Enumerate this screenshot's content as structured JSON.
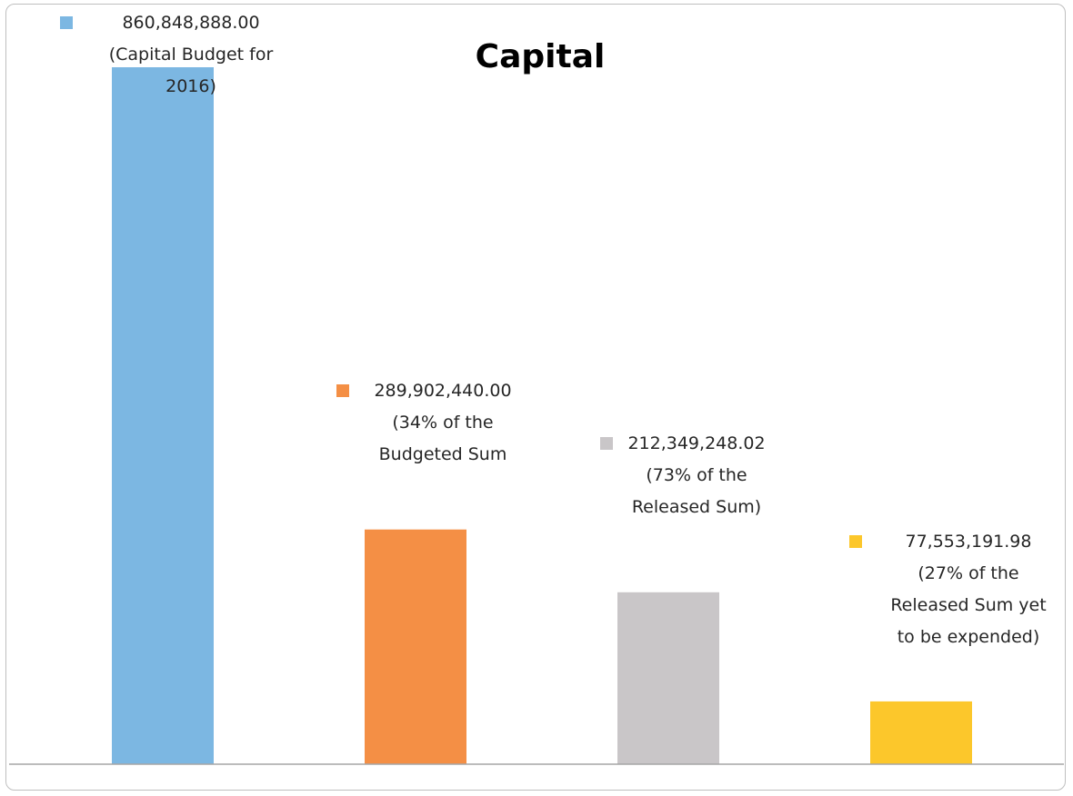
{
  "chart_data": {
    "type": "bar",
    "title": "Capital",
    "xlabel": "",
    "ylabel": "",
    "ylim": [
      0,
      860848888.0
    ],
    "grid": false,
    "legend": "none",
    "categories": [
      "",
      "",
      "",
      ""
    ],
    "values": [
      860848888.0,
      289902440.0,
      212349248.02,
      77553191.98
    ],
    "colors": [
      "#7cb7e2",
      "#f48f45",
      "#c9c6c8",
      "#fcc72b"
    ],
    "data_labels": [
      [
        "860,848,888.00",
        "(Capital Budget for",
        "2016)"
      ],
      [
        "289,902,440.00",
        "(34% of the",
        "Budgeted  Sum"
      ],
      [
        "212,349,248.02",
        "(73% of the",
        "Released Sum)"
      ],
      [
        "77,553,191.98",
        "(27% of the",
        "Released Sum yet",
        "to be expended)"
      ]
    ]
  }
}
